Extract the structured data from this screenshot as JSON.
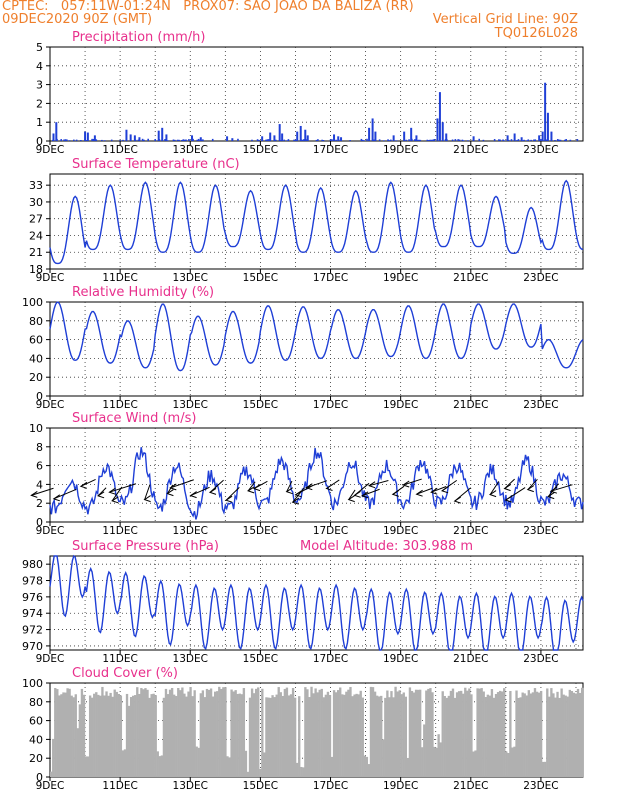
{
  "header": {
    "line1_left": "CPTEC:   057:11W-01:24N   PROX07: SAO JOAO DA BALIZA (RR)",
    "line2_left": "09DEC2020 90Z (GMT)",
    "line2_right": "Vertical Grid Line: 90Z",
    "line3_right": "TQ0126L028"
  },
  "colors": {
    "header": "#ef7f2c",
    "title": "#e8308c",
    "series": "#1f3fd6",
    "cloud": "#b0b0b0"
  },
  "x_ticks": [
    "9DEC",
    "11DEC",
    "13DEC",
    "15DEC",
    "17DEC",
    "19DEC",
    "21DEC",
    "23DEC"
  ],
  "x_tick_days": [
    0,
    2,
    4,
    6,
    8,
    10,
    12,
    14
  ],
  "x_range_days": [
    0,
    15.2
  ],
  "chart_data": [
    {
      "type": "bar",
      "title": "Precipitation (mm/h)",
      "ylim": [
        0,
        5
      ],
      "yticks": [
        "0",
        "1",
        "2",
        "3",
        "4",
        "5"
      ],
      "spikes": [
        [
          0.1,
          0.4
        ],
        [
          0.18,
          1.0
        ],
        [
          1.0,
          0.5
        ],
        [
          1.08,
          0.45
        ],
        [
          1.28,
          0.3
        ],
        [
          2.18,
          0.6
        ],
        [
          2.3,
          0.35
        ],
        [
          2.42,
          0.3
        ],
        [
          2.55,
          0.2
        ],
        [
          3.1,
          0.55
        ],
        [
          3.2,
          0.7
        ],
        [
          3.32,
          0.35
        ],
        [
          4.05,
          0.3
        ],
        [
          4.3,
          0.2
        ],
        [
          5.05,
          0.25
        ],
        [
          5.2,
          0.15
        ],
        [
          6.05,
          0.25
        ],
        [
          6.28,
          0.45
        ],
        [
          6.4,
          0.3
        ],
        [
          6.55,
          0.9
        ],
        [
          6.62,
          0.4
        ],
        [
          7.05,
          0.5
        ],
        [
          7.15,
          0.8
        ],
        [
          7.28,
          0.6
        ],
        [
          7.35,
          0.3
        ],
        [
          8.1,
          0.35
        ],
        [
          8.22,
          0.25
        ],
        [
          8.3,
          0.2
        ],
        [
          9.1,
          0.7
        ],
        [
          9.2,
          1.2
        ],
        [
          9.28,
          0.5
        ],
        [
          9.8,
          0.3
        ],
        [
          10.1,
          0.5
        ],
        [
          10.3,
          0.7
        ],
        [
          10.45,
          0.3
        ],
        [
          11.05,
          1.2
        ],
        [
          11.12,
          2.6
        ],
        [
          11.2,
          1.0
        ],
        [
          11.3,
          0.4
        ],
        [
          12.08,
          0.25
        ],
        [
          13.05,
          0.3
        ],
        [
          13.25,
          0.4
        ],
        [
          13.45,
          0.2
        ],
        [
          13.95,
          0.3
        ],
        [
          14.05,
          0.5
        ],
        [
          14.12,
          3.1
        ],
        [
          14.2,
          1.5
        ],
        [
          14.3,
          0.5
        ]
      ],
      "baseline_rain": 0.08
    },
    {
      "type": "line",
      "title": "Surface Temperature (nC)",
      "ylim": [
        18,
        35
      ],
      "yticks": [
        "18",
        "21",
        "24",
        "27",
        "30",
        "33"
      ],
      "daily_min": [
        19,
        21.5,
        21.5,
        21,
        21,
        22,
        21.5,
        21,
        21,
        21,
        21,
        22,
        22,
        20.8,
        21.5
      ],
      "daily_max": [
        31,
        33,
        33.5,
        33.5,
        33,
        32,
        33,
        32.5,
        32,
        33.5,
        33,
        33,
        31,
        29,
        33.8
      ]
    },
    {
      "type": "line",
      "title": "Relative Humidity (%)",
      "ylim": [
        0,
        100
      ],
      "yticks": [
        "0",
        "20",
        "40",
        "60",
        "80",
        "100"
      ],
      "daily_min": [
        38,
        35,
        30,
        27,
        33,
        35,
        38,
        40,
        40,
        42,
        40,
        40,
        50,
        52,
        30
      ],
      "daily_max": [
        100,
        90,
        80,
        98,
        85,
        90,
        96,
        95,
        92,
        92,
        96,
        98,
        98,
        98,
        60
      ]
    },
    {
      "type": "line",
      "title": "Surface Wind (m/s)",
      "ylim": [
        0,
        10
      ],
      "yticks": [
        "0",
        "2",
        "4",
        "6",
        "8",
        "10"
      ],
      "daily_min": [
        1.5,
        1.5,
        2.0,
        1.5,
        1.0,
        1.5,
        2.0,
        2.5,
        2.0,
        2.0,
        2.0,
        2.0,
        2.0,
        2.0,
        2.0
      ],
      "daily_max": [
        4.5,
        6.0,
        7.5,
        6.0,
        5.0,
        5.5,
        6.5,
        7.5,
        6.5,
        6.0,
        6.5,
        6.0,
        5.5,
        6.5,
        5.0
      ],
      "arrow_days": [
        0.1,
        0.75,
        1.3,
        1.6,
        2.05,
        2.45,
        2.85,
        3.5,
        4.1,
        4.55,
        4.95,
        5.4,
        5.85,
        6.2,
        6.9,
        7.25,
        7.5,
        7.9,
        8.25,
        8.7,
        9.1,
        9.4,
        9.65,
        10.1,
        10.6,
        10.9,
        11.3,
        11.6,
        12.0,
        12.8,
        13.25,
        13.55,
        13.9,
        14.5,
        14.9
      ]
    },
    {
      "type": "line",
      "title": "Surface Pressure (hPa)",
      "annotation": "Model Altitude: 303.988 m",
      "ylim": [
        969.5,
        981
      ],
      "yticks": [
        "970",
        "972",
        "974",
        "976",
        "978",
        "980"
      ],
      "semidiurnal_amplitude": 3.2,
      "daily_mean": [
        978,
        976,
        975.5,
        974.5,
        974,
        974,
        974,
        974,
        974,
        973.5,
        973.5,
        973,
        973,
        973,
        972.5
      ]
    },
    {
      "type": "area",
      "title": "Cloud Cover (%)",
      "ylim": [
        0,
        100
      ],
      "yticks": [
        "0",
        "20",
        "40",
        "60",
        "80",
        "100"
      ],
      "base": 96,
      "dips": [
        [
          0.02,
          5
        ],
        [
          0.05,
          40
        ],
        [
          0.8,
          50
        ],
        [
          0.85,
          75
        ],
        [
          1.05,
          20
        ],
        [
          2.1,
          28
        ],
        [
          2.25,
          75
        ],
        [
          2.32,
          85
        ],
        [
          3.1,
          25
        ],
        [
          3.15,
          20
        ],
        [
          4.2,
          30
        ],
        [
          5.1,
          20
        ],
        [
          5.6,
          25
        ],
        [
          5.65,
          2
        ],
        [
          6.0,
          8
        ],
        [
          6.1,
          25
        ],
        [
          7.05,
          15
        ],
        [
          7.2,
          10
        ],
        [
          8.05,
          20
        ],
        [
          9.0,
          20
        ],
        [
          9.1,
          12
        ],
        [
          9.5,
          40
        ],
        [
          10.2,
          20
        ],
        [
          10.6,
          30
        ],
        [
          10.65,
          55
        ],
        [
          11.0,
          30
        ],
        [
          11.1,
          45
        ],
        [
          11.15,
          35
        ],
        [
          12.1,
          25
        ],
        [
          13.05,
          25
        ],
        [
          13.2,
          30
        ],
        [
          14.1,
          15
        ]
      ]
    }
  ]
}
